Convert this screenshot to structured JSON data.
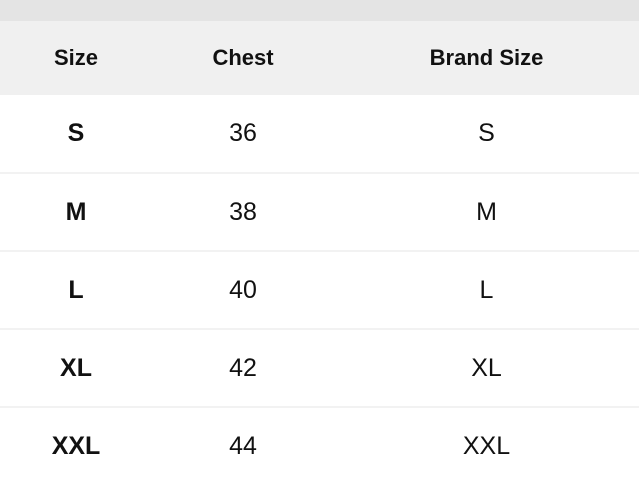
{
  "headers": [
    "Size",
    "Chest",
    "Brand Size"
  ],
  "rows": [
    {
      "size": "S",
      "chest": "36",
      "brand_size": "S"
    },
    {
      "size": "M",
      "chest": "38",
      "brand_size": "M"
    },
    {
      "size": "L",
      "chest": "40",
      "brand_size": "L"
    },
    {
      "size": "XL",
      "chest": "42",
      "brand_size": "XL"
    },
    {
      "size": "XXL",
      "chest": "44",
      "brand_size": "XXL"
    }
  ]
}
